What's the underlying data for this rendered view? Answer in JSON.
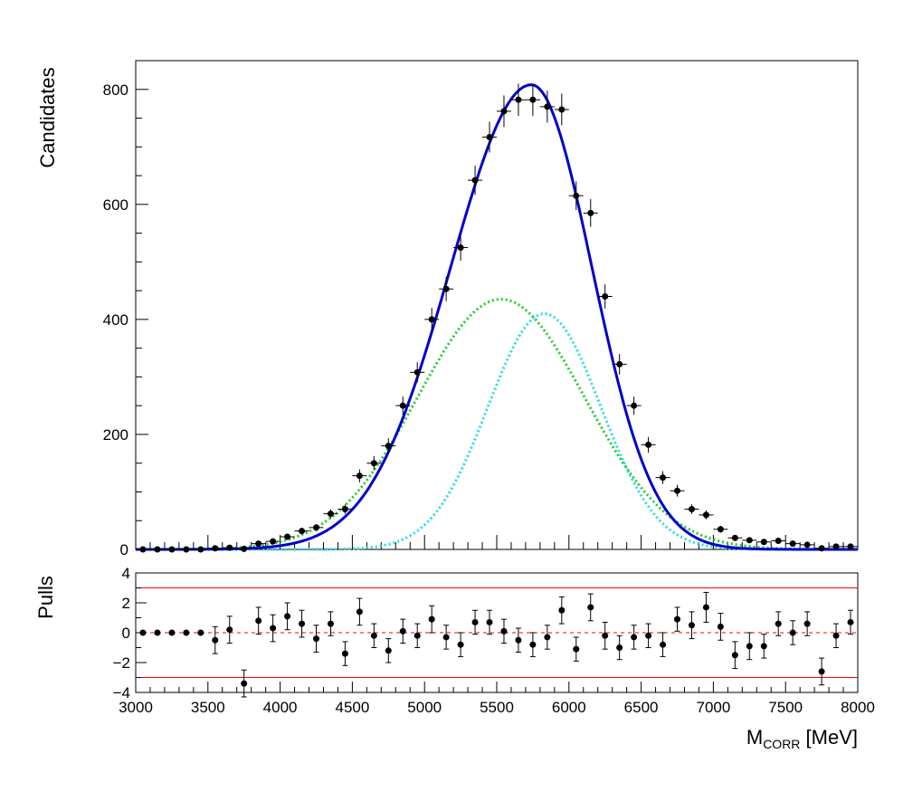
{
  "chart_data": [
    {
      "type": "scatter",
      "panel": "main",
      "ylabel": "Candidates",
      "xlim": [
        3000,
        8000
      ],
      "ylim": [
        0,
        850
      ],
      "grid": false,
      "legend": "none",
      "yticks": [
        0,
        200,
        400,
        600,
        800
      ],
      "data_points": {
        "name": "",
        "x": [
          3050,
          3150,
          3250,
          3350,
          3450,
          3550,
          3650,
          3750,
          3850,
          3950,
          4050,
          4150,
          4250,
          4350,
          4450,
          4550,
          4650,
          4750,
          4850,
          4950,
          5050,
          5150,
          5250,
          5350,
          5450,
          5550,
          5650,
          5750,
          5850,
          5950,
          6050,
          6150,
          6250,
          6350,
          6450,
          6550,
          6650,
          6750,
          6850,
          6950,
          7050,
          7150,
          7250,
          7350,
          7450,
          7550,
          7650,
          7750,
          7850,
          7950
        ],
        "y": [
          0,
          0,
          0,
          0,
          0,
          2,
          3,
          1,
          10,
          14,
          22,
          32,
          38,
          62,
          70,
          128,
          150,
          180,
          250,
          308,
          400,
          453,
          525,
          642,
          717,
          762,
          782,
          782,
          770,
          765,
          615,
          585,
          440,
          322,
          250,
          182,
          125,
          102,
          70,
          60,
          35,
          20,
          16,
          13,
          15,
          10,
          8,
          2,
          5,
          5
        ],
        "x_err": 50
      },
      "curves": [
        {
          "name": "",
          "color": "#0000cc",
          "style": "solid",
          "amplitude": 808,
          "mean": 5740
        },
        {
          "name": "",
          "color": "#22cc22",
          "style": "dotted",
          "amplitude": 435,
          "mean": 5530,
          "sigma": 580
        },
        {
          "name": "",
          "color": "#22dddd",
          "style": "dotted",
          "amplitude": 410,
          "mean": 5830,
          "sigma": 390
        }
      ]
    },
    {
      "type": "scatter",
      "panel": "pulls",
      "ylabel": "Pulls",
      "xlabel_main": "M",
      "xlabel_sub": "CORR",
      "xlabel_unit": " [MeV]",
      "xlim": [
        3000,
        8000
      ],
      "ylim": [
        -4,
        4
      ],
      "yticks": [
        -4,
        -2,
        0,
        2,
        4
      ],
      "xticks": [
        3000,
        3500,
        4000,
        4500,
        5000,
        5500,
        6000,
        6500,
        7000,
        7500,
        8000
      ],
      "reference_lines": [
        {
          "y": 3,
          "color": "#ff0000",
          "style": "solid"
        },
        {
          "y": -3,
          "color": "#ff0000",
          "style": "solid"
        },
        {
          "y": 0,
          "color": "#ff0000",
          "style": "dashed"
        }
      ],
      "x": [
        3050,
        3150,
        3250,
        3350,
        3450,
        3550,
        3650,
        3750,
        3850,
        3950,
        4050,
        4150,
        4250,
        4350,
        4450,
        4550,
        4650,
        4750,
        4850,
        4950,
        5050,
        5150,
        5250,
        5350,
        5450,
        5550,
        5650,
        5750,
        5850,
        5950,
        6050,
        6150,
        6250,
        6350,
        6450,
        6550,
        6650,
        6750,
        6850,
        6950,
        7050,
        7150,
        7250,
        7350,
        7450,
        7550,
        7650,
        7750,
        7850,
        7950
      ],
      "y": [
        0,
        0,
        0,
        0,
        0,
        -0.5,
        0.2,
        -3.4,
        0.8,
        0.3,
        1.1,
        0.6,
        -0.4,
        0.6,
        -1.4,
        1.4,
        -0.2,
        -1.2,
        0.1,
        -0.2,
        0.9,
        -0.3,
        -0.8,
        0.7,
        0.7,
        0.1,
        -0.5,
        -0.8,
        -0.3,
        1.5,
        -1.1,
        1.7,
        -0.2,
        -1.0,
        -0.3,
        -0.2,
        -0.8,
        0.9,
        0.5,
        1.7,
        0.4,
        -1.5,
        -0.9,
        -0.9,
        0.6,
        0.0,
        0.6,
        -2.6,
        -0.2,
        0.7
      ],
      "y_err": [
        0.05,
        0.05,
        0.05,
        0.05,
        0.05,
        0.9,
        0.9,
        0.9,
        0.9,
        0.9,
        0.9,
        0.9,
        0.9,
        0.8,
        0.8,
        0.9,
        0.8,
        0.8,
        0.8,
        0.8,
        0.9,
        0.8,
        0.8,
        0.8,
        0.8,
        0.8,
        0.8,
        0.8,
        0.8,
        0.9,
        0.8,
        0.9,
        0.9,
        0.8,
        0.8,
        0.8,
        0.8,
        0.8,
        0.9,
        1.0,
        0.9,
        0.9,
        0.9,
        0.8,
        0.8,
        0.8,
        0.8,
        0.9,
        0.8,
        0.8
      ]
    }
  ]
}
